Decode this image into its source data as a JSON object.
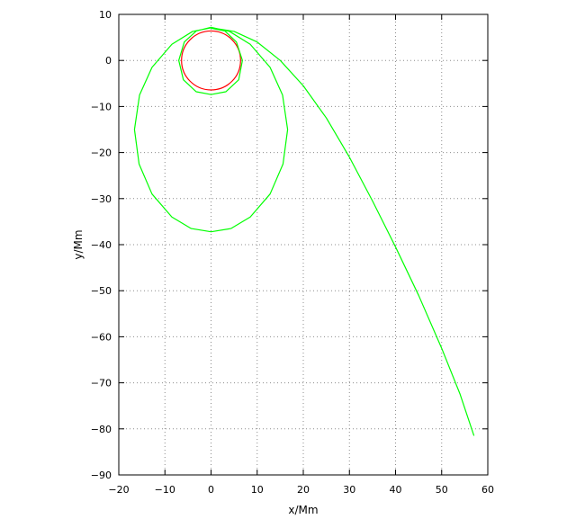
{
  "chart_data": {
    "type": "line",
    "title": "",
    "xlabel": "x/Mm",
    "ylabel": "y/Mm",
    "xlim": [
      -20,
      60
    ],
    "ylim": [
      -90,
      10
    ],
    "xticks": [
      -20,
      -10,
      0,
      10,
      20,
      30,
      40,
      50,
      60
    ],
    "yticks": [
      -90,
      -80,
      -70,
      -60,
      -50,
      -40,
      -30,
      -20,
      -10,
      0,
      10
    ],
    "grid": true,
    "legend": "none",
    "series": [
      {
        "color": "#ff0000",
        "kind": "circle",
        "center": [
          0,
          0
        ],
        "radius": 6.4
      },
      {
        "color": "#00ff00",
        "kind": "orbit",
        "points": [
          [
            0.0,
            7.0
          ],
          [
            3.0,
            6.4
          ],
          [
            5.5,
            4.0
          ],
          [
            6.8,
            0.0
          ],
          [
            6.0,
            -4.2
          ],
          [
            3.2,
            -6.8
          ],
          [
            0.0,
            -7.4
          ],
          [
            -3.2,
            -6.8
          ],
          [
            -6.0,
            -4.2
          ],
          [
            -7.0,
            0.0
          ],
          [
            -5.8,
            4.0
          ],
          [
            -3.2,
            6.4
          ],
          [
            0.0,
            7.2
          ],
          [
            4.0,
            6.3
          ],
          [
            8.5,
            3.5
          ],
          [
            12.8,
            -1.5
          ],
          [
            15.5,
            -7.5
          ],
          [
            16.6,
            -15.0
          ],
          [
            15.6,
            -22.5
          ],
          [
            12.8,
            -29.0
          ],
          [
            8.5,
            -34.0
          ],
          [
            4.3,
            -36.5
          ],
          [
            0.0,
            -37.2
          ],
          [
            -4.3,
            -36.5
          ],
          [
            -8.5,
            -34.0
          ],
          [
            -12.8,
            -29.0
          ],
          [
            -15.6,
            -22.5
          ],
          [
            -16.6,
            -15.0
          ],
          [
            -15.5,
            -7.5
          ],
          [
            -12.8,
            -1.5
          ],
          [
            -8.5,
            3.5
          ],
          [
            -4.0,
            6.3
          ],
          [
            0.0,
            7.1
          ],
          [
            5.0,
            6.3
          ],
          [
            10.0,
            4.0
          ],
          [
            15.0,
            0.0
          ],
          [
            20.0,
            -5.5
          ],
          [
            25.0,
            -12.5
          ],
          [
            30.0,
            -21.0
          ],
          [
            35.0,
            -30.5
          ],
          [
            40.0,
            -40.5
          ],
          [
            45.0,
            -51.0
          ],
          [
            50.0,
            -62.5
          ],
          [
            54.0,
            -72.5
          ],
          [
            57.0,
            -81.5
          ]
        ]
      }
    ]
  }
}
